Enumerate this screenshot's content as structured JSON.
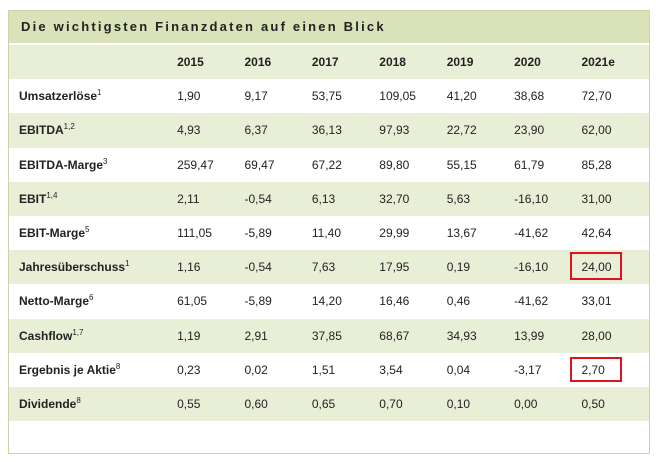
{
  "title": "Die wichtigsten Finanzdaten auf einen Blick",
  "years": [
    "2015",
    "2016",
    "2017",
    "2018",
    "2019",
    "2020",
    "2021e"
  ],
  "rows": [
    {
      "label": "Umsatzerlöse",
      "sup": "1",
      "values": [
        "1,90",
        "9,17",
        "53,75",
        "109,05",
        "41,20",
        "38,68",
        "72,70"
      ]
    },
    {
      "label": "EBITDA",
      "sup": "1,2",
      "values": [
        "4,93",
        "6,37",
        "36,13",
        "97,93",
        "22,72",
        "23,90",
        "62,00"
      ]
    },
    {
      "label": "EBITDA-Marge",
      "sup": "3",
      "values": [
        "259,47",
        "69,47",
        "67,22",
        "89,80",
        "55,15",
        "61,79",
        "85,28"
      ]
    },
    {
      "label": "EBIT",
      "sup": "1,4",
      "values": [
        "2,11",
        "-0,54",
        "6,13",
        "32,70",
        "5,63",
        "-16,10",
        "31,00"
      ]
    },
    {
      "label": "EBIT-Marge",
      "sup": "5",
      "values": [
        "111,05",
        "-5,89",
        "11,40",
        "29,99",
        "13,67",
        "-41,62",
        "42,64"
      ]
    },
    {
      "label": "Jahresüberschuss",
      "sup": "1",
      "values": [
        "1,16",
        "-0,54",
        "7,63",
        "17,95",
        "0,19",
        "-16,10",
        "24,00"
      ]
    },
    {
      "label": "Netto-Marge",
      "sup": "6",
      "values": [
        "61,05",
        "-5,89",
        "14,20",
        "16,46",
        "0,46",
        "-41,62",
        "33,01"
      ]
    },
    {
      "label": "Cashflow",
      "sup": "1,7",
      "values": [
        "1,19",
        "2,91",
        "37,85",
        "68,67",
        "34,93",
        "13,99",
        "28,00"
      ]
    },
    {
      "label": "Ergebnis je Aktie",
      "sup": "8",
      "values": [
        "0,23",
        "0,02",
        "1,51",
        "3,54",
        "0,04",
        "-3,17",
        "2,70"
      ]
    },
    {
      "label": "Dividende",
      "sup": "8",
      "values": [
        "0,55",
        "0,60",
        "0,65",
        "0,70",
        "0,10",
        "0,00",
        "0,50"
      ]
    }
  ],
  "colors": {
    "header_bg": "#d9e2b8",
    "row_shade": "#e9efd6",
    "highlight": "#e0121b"
  }
}
